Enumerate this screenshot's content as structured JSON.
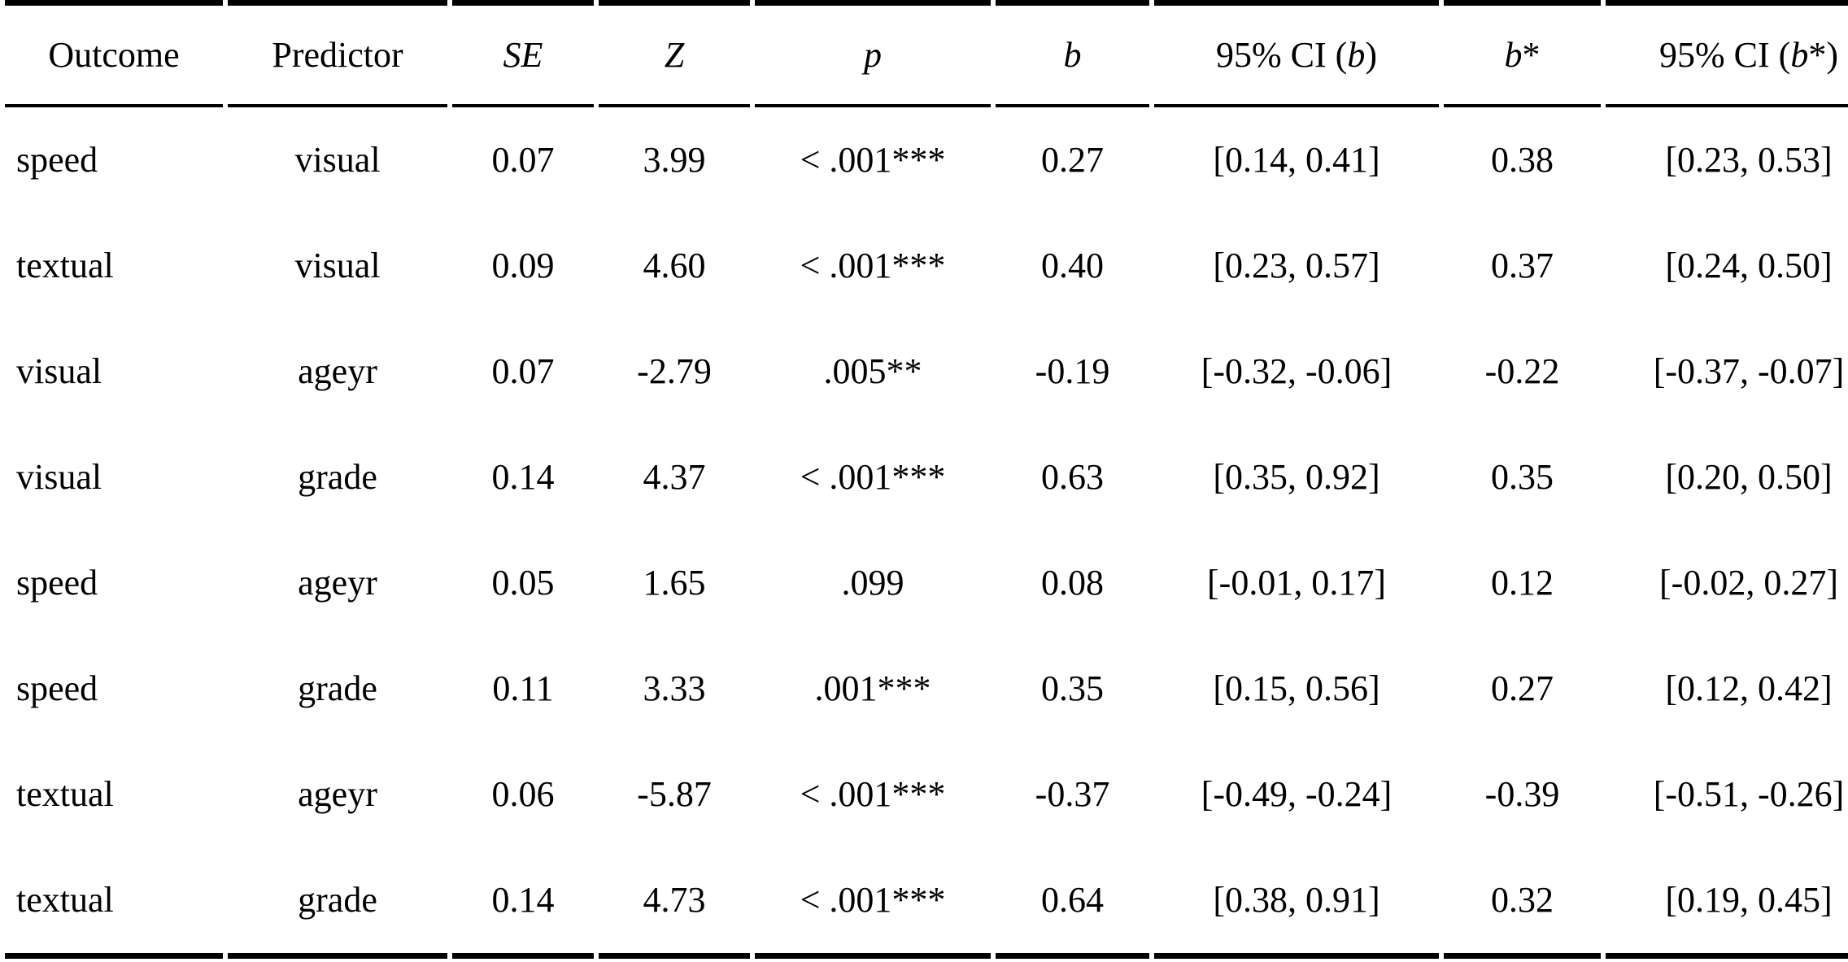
{
  "table": {
    "background": "#ffffff",
    "rule_color": "#000000",
    "columns": [
      {
        "pre": "Outcome"
      },
      {
        "pre": "Predictor"
      },
      {
        "ital": "SE"
      },
      {
        "ital": "Z"
      },
      {
        "ital": "p"
      },
      {
        "ital": "b"
      },
      {
        "pre": "95% CI (",
        "ital": "b",
        "post": ")"
      },
      {
        "ital": "b",
        "post": "*"
      },
      {
        "pre": "95% CI (",
        "ital": "b",
        "post": "*)"
      }
    ],
    "rows": [
      [
        "speed",
        "visual",
        "0.07",
        "3.99",
        "< .001***",
        "0.27",
        "[0.14, 0.41]",
        "0.38",
        "[0.23, 0.53]"
      ],
      [
        "textual",
        "visual",
        "0.09",
        "4.60",
        "< .001***",
        "0.40",
        "[0.23, 0.57]",
        "0.37",
        "[0.24, 0.50]"
      ],
      [
        "visual",
        "ageyr",
        "0.07",
        "-2.79",
        ".005**",
        "-0.19",
        "[-0.32, -0.06]",
        "-0.22",
        "[-0.37, -0.07]"
      ],
      [
        "visual",
        "grade",
        "0.14",
        "4.37",
        "< .001***",
        "0.63",
        "[0.35, 0.92]",
        "0.35",
        "[0.20, 0.50]"
      ],
      [
        "speed",
        "ageyr",
        "0.05",
        "1.65",
        ".099",
        "0.08",
        "[-0.01, 0.17]",
        "0.12",
        "[-0.02, 0.27]"
      ],
      [
        "speed",
        "grade",
        "0.11",
        "3.33",
        ".001***",
        "0.35",
        "[0.15, 0.56]",
        "0.27",
        "[0.12, 0.42]"
      ],
      [
        "textual",
        "ageyr",
        "0.06",
        "-5.87",
        "< .001***",
        "-0.37",
        "[-0.49, -0.24]",
        "-0.39",
        "[-0.51, -0.26]"
      ],
      [
        "textual",
        "grade",
        "0.14",
        "4.73",
        "< .001***",
        "0.64",
        "[0.38, 0.91]",
        "0.32",
        "[0.19, 0.45]"
      ]
    ]
  }
}
